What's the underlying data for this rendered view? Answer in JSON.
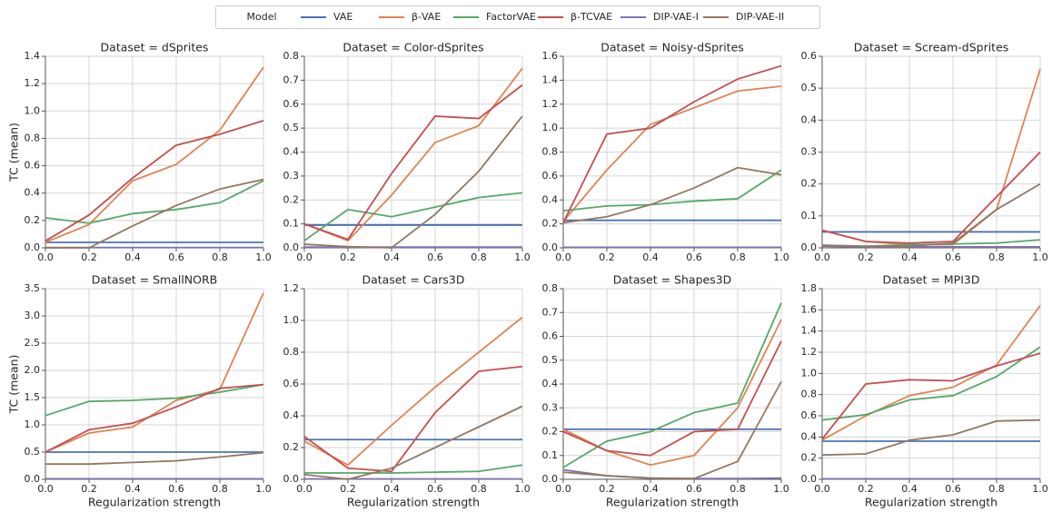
{
  "legend": {
    "title": "Model",
    "position": "upper center"
  },
  "chart_data": [
    {
      "type": "line",
      "title": "Dataset = dSprites",
      "ylabel": "TC (mean)",
      "x": [
        0,
        0.2,
        0.4,
        0.6,
        0.8,
        1.0
      ],
      "xlim": [
        0,
        1
      ],
      "xticks": [
        {
          "value": 0,
          "label": "0.0"
        },
        0.2,
        0.4,
        0.6,
        0.8,
        {
          "value": 1,
          "label": "1.0"
        }
      ],
      "ylim": [
        0,
        1.4
      ],
      "yticks": [
        {
          "value": 0,
          "label": "0.0"
        },
        0.2,
        0.4,
        0.6,
        0.8,
        {
          "value": 1,
          "label": "1.0"
        },
        1.2,
        1.4
      ],
      "grid": true,
      "series": [
        {
          "name": "VAE",
          "color": "#4c72b0",
          "values": [
            0.04,
            0.04,
            0.04,
            0.04,
            0.04,
            0.04
          ]
        },
        {
          "name": "β-VAE",
          "color": "#dd8452",
          "values": [
            0.04,
            0.17,
            0.49,
            0.61,
            0.86,
            1.32
          ]
        },
        {
          "name": "FactorVAE",
          "color": "#55a868",
          "values": [
            0.22,
            0.18,
            0.25,
            0.28,
            0.33,
            0.49
          ]
        },
        {
          "name": "β-TCVAE",
          "color": "#c44e52",
          "values": [
            0.05,
            0.24,
            0.51,
            0.75,
            0.83,
            0.93
          ]
        },
        {
          "name": "DIP-VAE-I",
          "color": "#8172b2",
          "values": [
            0.002,
            0.002,
            0.002,
            0.002,
            0.002,
            0.002
          ]
        },
        {
          "name": "DIP-VAE-II",
          "color": "#937860",
          "values": [
            0.0,
            0.0,
            0.16,
            0.31,
            0.43,
            0.5
          ]
        }
      ]
    },
    {
      "type": "line",
      "title": "Dataset = Color-dSprites",
      "x": [
        0,
        0.2,
        0.4,
        0.6,
        0.8,
        1.0
      ],
      "xlim": [
        0,
        1
      ],
      "xticks": [
        {
          "value": 0,
          "label": "0.0"
        },
        0.2,
        0.4,
        0.6,
        0.8,
        {
          "value": 1,
          "label": "1.0"
        }
      ],
      "ylim": [
        0,
        0.8
      ],
      "yticks": [
        {
          "value": 0,
          "label": "0.0"
        },
        0.1,
        0.2,
        0.3,
        0.4,
        0.5,
        0.6,
        0.7,
        0.8
      ],
      "grid": true,
      "series": [
        {
          "name": "VAE",
          "color": "#4c72b0",
          "values": [
            0.095,
            0.095,
            0.095,
            0.095,
            0.095,
            0.095
          ]
        },
        {
          "name": "β-VAE",
          "color": "#dd8452",
          "values": [
            0.1,
            0.03,
            0.22,
            0.44,
            0.51,
            0.75
          ]
        },
        {
          "name": "FactorVAE",
          "color": "#55a868",
          "values": [
            0.03,
            0.16,
            0.13,
            0.17,
            0.21,
            0.23
          ]
        },
        {
          "name": "β-TCVAE",
          "color": "#c44e52",
          "values": [
            0.1,
            0.035,
            0.31,
            0.55,
            0.54,
            0.68
          ]
        },
        {
          "name": "DIP-VAE-I",
          "color": "#8172b2",
          "values": [
            0.003,
            0.003,
            0.003,
            0.003,
            0.003,
            0.003
          ]
        },
        {
          "name": "DIP-VAE-II",
          "color": "#937860",
          "values": [
            0.015,
            0.005,
            0.0,
            0.14,
            0.32,
            0.55
          ]
        }
      ]
    },
    {
      "type": "line",
      "title": "Dataset = Noisy-dSprites",
      "x": [
        0,
        0.2,
        0.4,
        0.6,
        0.8,
        1.0
      ],
      "xlim": [
        0,
        1
      ],
      "xticks": [
        {
          "value": 0,
          "label": "0.0"
        },
        0.2,
        0.4,
        0.6,
        0.8,
        {
          "value": 1,
          "label": "1.0"
        }
      ],
      "ylim": [
        0,
        1.6
      ],
      "yticks": [
        {
          "value": 0,
          "label": "0.0"
        },
        0.2,
        0.4,
        0.6,
        0.8,
        {
          "value": 1,
          "label": "1.0"
        },
        1.2,
        1.4,
        1.6
      ],
      "grid": true,
      "series": [
        {
          "name": "VAE",
          "color": "#4c72b0",
          "values": [
            0.23,
            0.23,
            0.23,
            0.23,
            0.23,
            0.23
          ]
        },
        {
          "name": "β-VAE",
          "color": "#dd8452",
          "values": [
            0.22,
            0.65,
            1.03,
            1.17,
            1.31,
            1.35
          ]
        },
        {
          "name": "FactorVAE",
          "color": "#55a868",
          "values": [
            0.31,
            0.35,
            0.36,
            0.39,
            0.41,
            0.65
          ]
        },
        {
          "name": "β-TCVAE",
          "color": "#c44e52",
          "values": [
            0.21,
            0.95,
            1.0,
            1.22,
            1.41,
            1.52
          ]
        },
        {
          "name": "DIP-VAE-I",
          "color": "#8172b2",
          "values": [
            0.005,
            0.005,
            0.005,
            0.005,
            0.005,
            0.005
          ]
        },
        {
          "name": "DIP-VAE-II",
          "color": "#937860",
          "values": [
            0.21,
            0.26,
            0.36,
            0.5,
            0.67,
            0.61
          ]
        }
      ]
    },
    {
      "type": "line",
      "title": "Dataset = Scream-dSprites",
      "x": [
        0,
        0.2,
        0.4,
        0.6,
        0.8,
        1.0
      ],
      "xlim": [
        0,
        1
      ],
      "xticks": [
        {
          "value": 0,
          "label": "0.0"
        },
        0.2,
        0.4,
        0.6,
        0.8,
        {
          "value": 1,
          "label": "1.0"
        }
      ],
      "ylim": [
        0,
        0.6
      ],
      "yticks": [
        {
          "value": 0,
          "label": "0.0"
        },
        0.1,
        0.2,
        0.3,
        0.4,
        0.5,
        0.6
      ],
      "grid": true,
      "series": [
        {
          "name": "VAE",
          "color": "#4c72b0",
          "values": [
            0.05,
            0.05,
            0.05,
            0.05,
            0.05,
            0.05
          ]
        },
        {
          "name": "β-VAE",
          "color": "#dd8452",
          "values": [
            0.055,
            0.02,
            0.01,
            0.01,
            0.12,
            0.56
          ]
        },
        {
          "name": "FactorVAE",
          "color": "#55a868",
          "values": [
            0.008,
            0.005,
            0.01,
            0.012,
            0.015,
            0.025
          ]
        },
        {
          "name": "β-TCVAE",
          "color": "#c44e52",
          "values": [
            0.055,
            0.02,
            0.015,
            0.02,
            0.16,
            0.3
          ]
        },
        {
          "name": "DIP-VAE-I",
          "color": "#8172b2",
          "values": [
            0.005,
            0.003,
            0.003,
            0.003,
            0.003,
            0.003
          ]
        },
        {
          "name": "DIP-VAE-II",
          "color": "#937860",
          "values": [
            0.008,
            0.005,
            0.005,
            0.015,
            0.12,
            0.2
          ]
        }
      ]
    },
    {
      "type": "line",
      "title": "Dataset = SmallNORB",
      "ylabel": "TC (mean)",
      "xlabel": "Regularization strength",
      "x": [
        0,
        0.2,
        0.4,
        0.6,
        0.8,
        1.0
      ],
      "xlim": [
        0,
        1
      ],
      "xticks": [
        {
          "value": 0,
          "label": "0.0"
        },
        0.2,
        0.4,
        0.6,
        0.8,
        {
          "value": 1,
          "label": "1.0"
        }
      ],
      "ylim": [
        0,
        3.5
      ],
      "yticks": [
        {
          "value": 0,
          "label": "0.0"
        },
        0.5,
        {
          "value": 1,
          "label": "1.0"
        },
        1.5,
        {
          "value": 2,
          "label": "2.0"
        },
        2.5,
        {
          "value": 3,
          "label": "3.0"
        },
        3.5
      ],
      "grid": true,
      "series": [
        {
          "name": "VAE",
          "color": "#4c72b0",
          "values": [
            0.5,
            0.5,
            0.5,
            0.5,
            0.5,
            0.5
          ]
        },
        {
          "name": "β-VAE",
          "color": "#dd8452",
          "values": [
            0.5,
            0.85,
            0.96,
            1.45,
            1.65,
            3.42
          ]
        },
        {
          "name": "FactorVAE",
          "color": "#55a868",
          "values": [
            1.17,
            1.43,
            1.45,
            1.49,
            1.6,
            1.74
          ]
        },
        {
          "name": "β-TCVAE",
          "color": "#c44e52",
          "values": [
            0.5,
            0.91,
            1.03,
            1.33,
            1.67,
            1.74
          ]
        },
        {
          "name": "DIP-VAE-I",
          "color": "#8172b2",
          "values": [
            0.01,
            0.01,
            0.01,
            0.01,
            0.01,
            0.01
          ]
        },
        {
          "name": "DIP-VAE-II",
          "color": "#937860",
          "values": [
            0.28,
            0.28,
            0.31,
            0.34,
            0.41,
            0.49
          ]
        }
      ]
    },
    {
      "type": "line",
      "title": "Dataset = Cars3D",
      "xlabel": "Regularization strength",
      "x": [
        0,
        0.2,
        0.4,
        0.6,
        0.8,
        1.0
      ],
      "xlim": [
        0,
        1
      ],
      "xticks": [
        {
          "value": 0,
          "label": "0.0"
        },
        0.2,
        0.4,
        0.6,
        0.8,
        {
          "value": 1,
          "label": "1.0"
        }
      ],
      "ylim": [
        0,
        1.2
      ],
      "yticks": [
        {
          "value": 0,
          "label": "0.0"
        },
        0.2,
        0.4,
        0.6,
        0.8,
        {
          "value": 1,
          "label": "1.0"
        },
        1.2
      ],
      "grid": true,
      "series": [
        {
          "name": "VAE",
          "color": "#4c72b0",
          "values": [
            0.25,
            0.25,
            0.25,
            0.25,
            0.25,
            0.25
          ]
        },
        {
          "name": "β-VAE",
          "color": "#dd8452",
          "values": [
            0.24,
            0.09,
            0.34,
            0.58,
            0.8,
            1.02
          ]
        },
        {
          "name": "FactorVAE",
          "color": "#55a868",
          "values": [
            0.04,
            0.04,
            0.04,
            0.045,
            0.05,
            0.09
          ]
        },
        {
          "name": "β-TCVAE",
          "color": "#c44e52",
          "values": [
            0.27,
            0.07,
            0.05,
            0.42,
            0.68,
            0.71
          ]
        },
        {
          "name": "DIP-VAE-I",
          "color": "#8172b2",
          "values": [
            0.003,
            0.003,
            0.003,
            0.003,
            0.003,
            0.003
          ]
        },
        {
          "name": "DIP-VAE-II",
          "color": "#937860",
          "values": [
            0.03,
            0.0,
            0.07,
            0.2,
            0.33,
            0.46
          ]
        }
      ]
    },
    {
      "type": "line",
      "title": "Dataset = Shapes3D",
      "xlabel": "Regularization strength",
      "x": [
        0,
        0.2,
        0.4,
        0.6,
        0.8,
        1.0
      ],
      "xlim": [
        0,
        1
      ],
      "xticks": [
        {
          "value": 0,
          "label": "0.0"
        },
        0.2,
        0.4,
        0.6,
        0.8,
        {
          "value": 1,
          "label": "1.0"
        }
      ],
      "ylim": [
        0,
        0.8
      ],
      "yticks": [
        {
          "value": 0,
          "label": "0.0"
        },
        0.1,
        0.2,
        0.3,
        0.4,
        0.5,
        0.6,
        0.7,
        0.8
      ],
      "grid": true,
      "series": [
        {
          "name": "VAE",
          "color": "#4c72b0",
          "values": [
            0.21,
            0.21,
            0.21,
            0.21,
            0.21,
            0.21
          ]
        },
        {
          "name": "β-VAE",
          "color": "#dd8452",
          "values": [
            0.21,
            0.12,
            0.06,
            0.1,
            0.3,
            0.67
          ]
        },
        {
          "name": "FactorVAE",
          "color": "#55a868",
          "values": [
            0.05,
            0.16,
            0.2,
            0.28,
            0.32,
            0.74
          ]
        },
        {
          "name": "β-TCVAE",
          "color": "#c44e52",
          "values": [
            0.2,
            0.12,
            0.1,
            0.2,
            0.21,
            0.58
          ]
        },
        {
          "name": "DIP-VAE-I",
          "color": "#8172b2",
          "values": [
            0.04,
            0.015,
            0.005,
            0.003,
            0.003,
            0.005
          ]
        },
        {
          "name": "DIP-VAE-II",
          "color": "#937860",
          "values": [
            0.03,
            0.015,
            0.005,
            0.003,
            0.075,
            0.41
          ]
        }
      ]
    },
    {
      "type": "line",
      "title": "Dataset = MPI3D",
      "xlabel": "Regularization strength",
      "x": [
        0,
        0.2,
        0.4,
        0.6,
        0.8,
        1.0
      ],
      "xlim": [
        0,
        1
      ],
      "xticks": [
        {
          "value": 0,
          "label": "0.0"
        },
        0.2,
        0.4,
        0.6,
        0.8,
        {
          "value": 1,
          "label": "1.0"
        }
      ],
      "ylim": [
        0,
        1.8
      ],
      "yticks": [
        {
          "value": 0,
          "label": "0.0"
        },
        0.2,
        0.4,
        0.6,
        0.8,
        {
          "value": 1,
          "label": "1.0"
        },
        1.2,
        1.4,
        1.6,
        1.8
      ],
      "grid": true,
      "series": [
        {
          "name": "VAE",
          "color": "#4c72b0",
          "values": [
            0.36,
            0.36,
            0.36,
            0.36,
            0.36,
            0.36
          ]
        },
        {
          "name": "β-VAE",
          "color": "#dd8452",
          "values": [
            0.37,
            0.6,
            0.79,
            0.87,
            1.08,
            1.64
          ]
        },
        {
          "name": "FactorVAE",
          "color": "#55a868",
          "values": [
            0.56,
            0.61,
            0.75,
            0.79,
            0.97,
            1.25
          ]
        },
        {
          "name": "β-TCVAE",
          "color": "#c44e52",
          "values": [
            0.38,
            0.9,
            0.94,
            0.93,
            1.07,
            1.19
          ]
        },
        {
          "name": "DIP-VAE-I",
          "color": "#8172b2",
          "values": [
            0.005,
            0.005,
            0.005,
            0.005,
            0.005,
            0.005
          ]
        },
        {
          "name": "DIP-VAE-II",
          "color": "#937860",
          "values": [
            0.23,
            0.24,
            0.37,
            0.42,
            0.55,
            0.56
          ]
        }
      ]
    }
  ]
}
